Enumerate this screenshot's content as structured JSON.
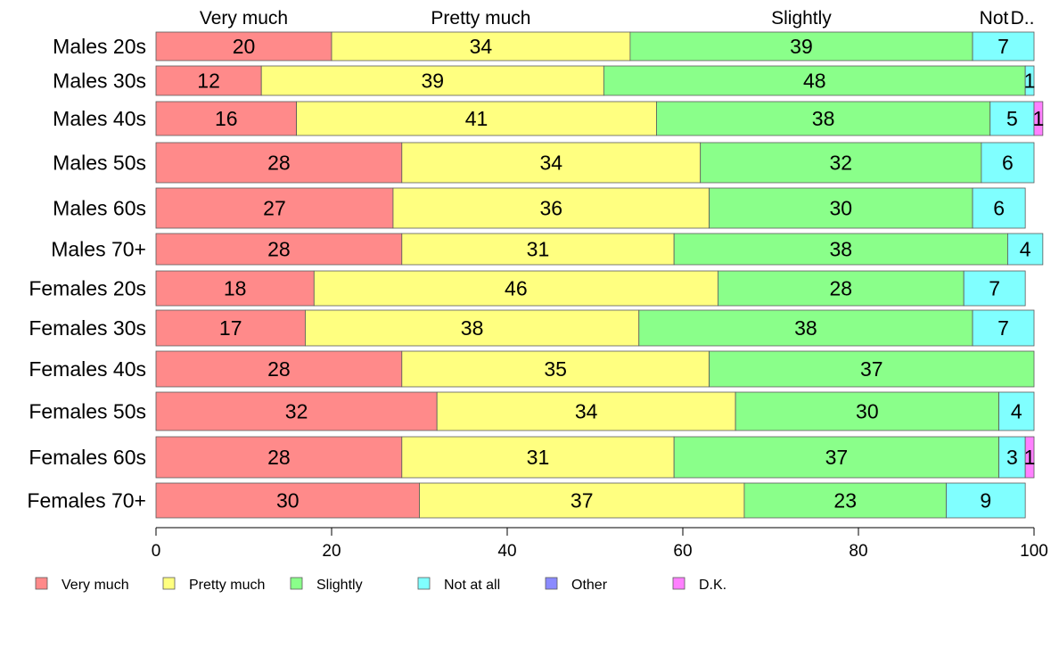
{
  "chart_data": {
    "type": "bar",
    "orientation": "horizontal",
    "stacked": true,
    "categories": [
      "Males 20s",
      "Males 30s",
      "Males 40s",
      "Males 50s",
      "Males 60s",
      "Males 70+",
      "Females 20s",
      "Females 30s",
      "Females 40s",
      "Females 50s",
      "Females 60s",
      "Females 70+"
    ],
    "series": [
      {
        "name": "Very much",
        "color": "#ff8a8a",
        "values": [
          20,
          12,
          16,
          28,
          27,
          28,
          18,
          17,
          28,
          32,
          28,
          30
        ]
      },
      {
        "name": "Pretty much",
        "color": "#ffff80",
        "values": [
          34,
          39,
          41,
          34,
          36,
          31,
          46,
          38,
          35,
          34,
          31,
          37
        ]
      },
      {
        "name": "Slightly",
        "color": "#8aff8a",
        "values": [
          39,
          48,
          38,
          32,
          30,
          38,
          28,
          38,
          37,
          30,
          37,
          23
        ]
      },
      {
        "name": "Not at all",
        "color": "#80ffff",
        "values": [
          7,
          1,
          5,
          6,
          6,
          4,
          7,
          7,
          0,
          4,
          3,
          9
        ]
      },
      {
        "name": "Other",
        "color": "#8a8aff",
        "values": [
          0,
          0,
          0,
          0,
          0,
          0,
          0,
          0,
          0,
          0,
          0,
          0
        ]
      },
      {
        "name": "D.K.",
        "color": "#ff80ff",
        "values": [
          0,
          0,
          1,
          0,
          0,
          0,
          0,
          0,
          0,
          0,
          1,
          0
        ]
      }
    ],
    "top_labels": [
      "Very much",
      "Pretty much",
      "Slightly",
      "Not at all",
      "D.K."
    ],
    "top_labels_display": [
      "Very much",
      "Pretty much",
      "Slightly",
      "Not",
      "D.."
    ],
    "xlim": [
      0,
      100
    ],
    "xticks": [
      0,
      20,
      40,
      60,
      80,
      100
    ],
    "legend": "bottom",
    "grid": false
  }
}
